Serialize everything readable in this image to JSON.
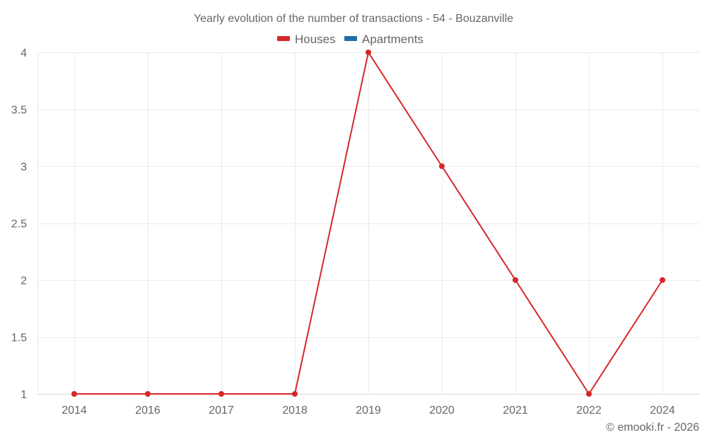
{
  "chart_data": {
    "type": "line",
    "title": "Yearly evolution of the number of transactions - 54 - Bouzanville",
    "xlabel": "",
    "ylabel": "",
    "categories": [
      "2014",
      "2016",
      "2017",
      "2018",
      "2019",
      "2020",
      "2021",
      "2022",
      "2024"
    ],
    "series": [
      {
        "name": "Houses",
        "color": "#d62728",
        "values": [
          1,
          1,
          1,
          1,
          4,
          3,
          2,
          1,
          2
        ]
      },
      {
        "name": "Apartments",
        "color": "#1f6fa8",
        "values": []
      }
    ],
    "ylim": [
      1,
      4
    ],
    "yticks": [
      1,
      1.5,
      2,
      2.5,
      3,
      3.5,
      4
    ],
    "ytick_labels": [
      "1",
      "1.5",
      "2",
      "2.5",
      "3",
      "3.5",
      "4"
    ],
    "grid": true,
    "legend_position": "top-center"
  },
  "title": "Yearly evolution of the number of transactions - 54 - Bouzanville",
  "legend": [
    {
      "label": "Houses",
      "color": "#d62728"
    },
    {
      "label": "Apartments",
      "color": "#1f6fa8"
    }
  ],
  "credit": "© emooki.fr - 2026"
}
